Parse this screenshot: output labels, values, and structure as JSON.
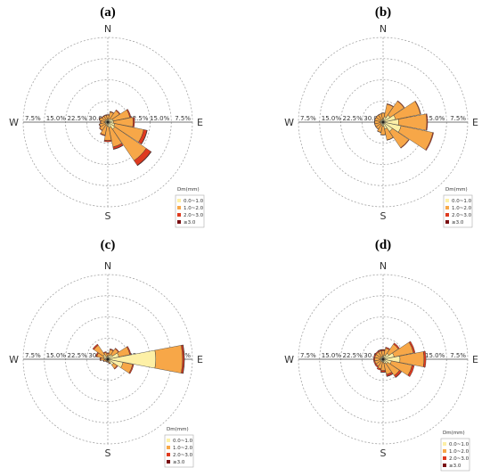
{
  "colors": {
    "0.0~1.0": "#fdf0a6",
    "1.0~2.0": "#f7a748",
    "2.0~3.0": "#de3a1f",
    "≥3.0": "#7a0e12",
    "ring": "#999999",
    "petal_edge": "#333333"
  },
  "chart_data": [
    {
      "type": "wind-rose",
      "panel": "(a)",
      "directions": [
        "N",
        "NNE",
        "NE",
        "ENE",
        "E",
        "ESE",
        "SE",
        "SSE",
        "S",
        "SSW",
        "SW",
        "WSW",
        "W",
        "WNW",
        "NW",
        "NNW"
      ],
      "direction_labels": [
        "N",
        "E",
        "S",
        "W"
      ],
      "ring_labels": [
        "7.5%",
        "15.0%",
        "22.5%",
        "30.0%",
        "30.0%",
        "22.5%",
        "15.0%",
        "7.5%"
      ],
      "rmax": 30,
      "legend_title": "Dm(mm)",
      "legend_items": [
        "0.0~1.0",
        "1.0~2.0",
        "2.0~3.0",
        "≥3.0"
      ],
      "series": [
        {
          "name": "0.0~1.0",
          "values": [
            1.0,
            1.2,
            1.5,
            2.0,
            2.0,
            2.5,
            3.0,
            2.0,
            1.5,
            1.2,
            1.0,
            1.0,
            1.0,
            1.0,
            1.0,
            1.0
          ]
        },
        {
          "name": "1.0~2.0",
          "values": [
            1.5,
            2.5,
            3.5,
            6.0,
            7.0,
            10.5,
            13.5,
            7.0,
            5.0,
            3.5,
            2.5,
            2.0,
            1.5,
            2.0,
            1.5,
            1.5
          ]
        },
        {
          "name": "2.0~3.0",
          "values": [
            0.2,
            0.2,
            0.3,
            0.4,
            0.5,
            1.2,
            2.0,
            0.8,
            0.5,
            0.3,
            0.2,
            0.2,
            0.2,
            0.2,
            0.2,
            0.2
          ]
        },
        {
          "name": "≥3.0",
          "values": [
            0,
            0,
            0,
            0,
            0,
            0.1,
            0.2,
            0.1,
            0,
            0,
            0,
            0,
            0,
            0,
            0,
            0
          ]
        }
      ]
    },
    {
      "type": "wind-rose",
      "panel": "(b)",
      "directions": [
        "N",
        "NNE",
        "NE",
        "ENE",
        "E",
        "ESE",
        "SE",
        "SSE",
        "S",
        "SSW",
        "SW",
        "WSW",
        "W",
        "WNW",
        "NW",
        "NNW"
      ],
      "direction_labels": [
        "N",
        "E",
        "S",
        "W"
      ],
      "ring_labels": [
        "7.5%",
        "15.0%",
        "22.5%",
        "30.0%",
        "30.0%",
        "22.5%",
        "15.0%",
        "7.5%"
      ],
      "rmax": 30,
      "legend_title": "Dm(mm)",
      "legend_items": [
        "0.0~1.0",
        "1.0~2.0",
        "2.0~3.0",
        "≥3.0"
      ],
      "series": [
        {
          "name": "0.0~1.0",
          "values": [
            1.2,
            2.0,
            3.0,
            4.5,
            5.5,
            6.5,
            4.0,
            2.5,
            1.5,
            1.2,
            1.0,
            1.0,
            1.0,
            1.0,
            1.0,
            1.0
          ]
        },
        {
          "name": "1.0~2.0",
          "values": [
            2.0,
            4.5,
            6.0,
            9.0,
            10.0,
            11.5,
            7.0,
            4.0,
            3.0,
            2.5,
            2.0,
            2.0,
            2.0,
            2.0,
            2.0,
            2.0
          ]
        },
        {
          "name": "2.0~3.0",
          "values": [
            0.1,
            0.2,
            0.2,
            0.2,
            0.3,
            0.3,
            0.2,
            0.1,
            0.1,
            0.1,
            0.1,
            0.1,
            0.1,
            0.1,
            0.1,
            0.1
          ]
        },
        {
          "name": "≥3.0",
          "values": [
            0,
            0,
            0,
            0,
            0,
            0,
            0,
            0,
            0,
            0,
            0,
            0,
            0,
            0,
            0,
            0
          ]
        }
      ]
    },
    {
      "type": "wind-rose",
      "panel": "(c)",
      "directions": [
        "N",
        "NNE",
        "NE",
        "ENE",
        "E",
        "ESE",
        "SE",
        "SSE",
        "S",
        "SSW",
        "SW",
        "WSW",
        "W",
        "WNW",
        "NW",
        "NNW"
      ],
      "direction_labels": [
        "N",
        "E",
        "S",
        "W"
      ],
      "ring_labels": [
        "7.5%",
        "15.0%",
        "22.5%",
        "30.0%",
        "30.0%",
        "22.5%",
        "15.0%",
        "7.5%"
      ],
      "rmax": 30,
      "legend_title": "Dm(mm)",
      "legend_items": [
        "0.0~1.0",
        "1.0~2.0",
        "2.0~3.0",
        "≥3.0"
      ],
      "series": [
        {
          "name": "0.0~1.0",
          "values": [
            1.0,
            1.5,
            2.0,
            4.0,
            17.0,
            5.5,
            2.5,
            1.0,
            0.5,
            0.5,
            0.5,
            0.5,
            1.0,
            1.5,
            2.0,
            1.0
          ]
        },
        {
          "name": "1.0~2.0",
          "values": [
            1.0,
            2.0,
            2.5,
            4.0,
            9.5,
            3.5,
            1.5,
            0.5,
            0.5,
            0.5,
            0.5,
            1.0,
            1.5,
            2.5,
            4.0,
            1.5
          ]
        },
        {
          "name": "2.0~3.0",
          "values": [
            0.3,
            0.3,
            0.3,
            0.4,
            0.6,
            0.4,
            0.3,
            0.2,
            0.1,
            0.1,
            0.1,
            0.2,
            0.3,
            0.4,
            0.5,
            0.3
          ]
        },
        {
          "name": "≥3.0",
          "values": [
            0,
            0,
            0,
            0,
            0.1,
            0,
            0,
            0,
            0,
            0,
            0,
            0,
            0,
            0,
            0,
            0
          ]
        }
      ]
    },
    {
      "type": "wind-rose",
      "panel": "(d)",
      "directions": [
        "N",
        "NNE",
        "NE",
        "ENE",
        "E",
        "ESE",
        "SE",
        "SSE",
        "S",
        "SSW",
        "SW",
        "WSW",
        "W",
        "WNW",
        "NW",
        "NNW"
      ],
      "direction_labels": [
        "N",
        "E",
        "S",
        "W"
      ],
      "ring_labels": [
        "7.5%",
        "15.0%",
        "22.5%",
        "30.0%",
        "30.0%",
        "22.5%",
        "15.0%",
        "7.5%"
      ],
      "rmax": 30,
      "legend_title": "Dm(mm)",
      "legend_items": [
        "0.0~1.0",
        "1.0~2.0",
        "2.0~3.0",
        "≥3.0"
      ],
      "series": [
        {
          "name": "0.0~1.0",
          "values": [
            1.0,
            1.5,
            2.5,
            4.0,
            6.0,
            3.0,
            2.0,
            1.5,
            1.0,
            1.0,
            1.0,
            1.0,
            1.0,
            1.0,
            1.0,
            1.0
          ]
        },
        {
          "name": "1.0~2.0",
          "values": [
            2.0,
            2.5,
            4.0,
            7.0,
            8.5,
            7.5,
            5.0,
            4.0,
            3.0,
            2.5,
            2.0,
            2.0,
            2.0,
            2.0,
            2.0,
            2.0
          ]
        },
        {
          "name": "2.0~3.0",
          "values": [
            0.4,
            0.4,
            0.5,
            0.6,
            0.7,
            0.8,
            0.8,
            0.7,
            0.6,
            0.5,
            0.5,
            0.4,
            0.4,
            0.4,
            0.4,
            0.4
          ]
        },
        {
          "name": "≥3.0",
          "values": [
            0.1,
            0,
            0,
            0,
            0,
            0,
            0.1,
            0.1,
            0.1,
            0,
            0,
            0,
            0,
            0,
            0,
            0.1
          ]
        }
      ]
    }
  ]
}
